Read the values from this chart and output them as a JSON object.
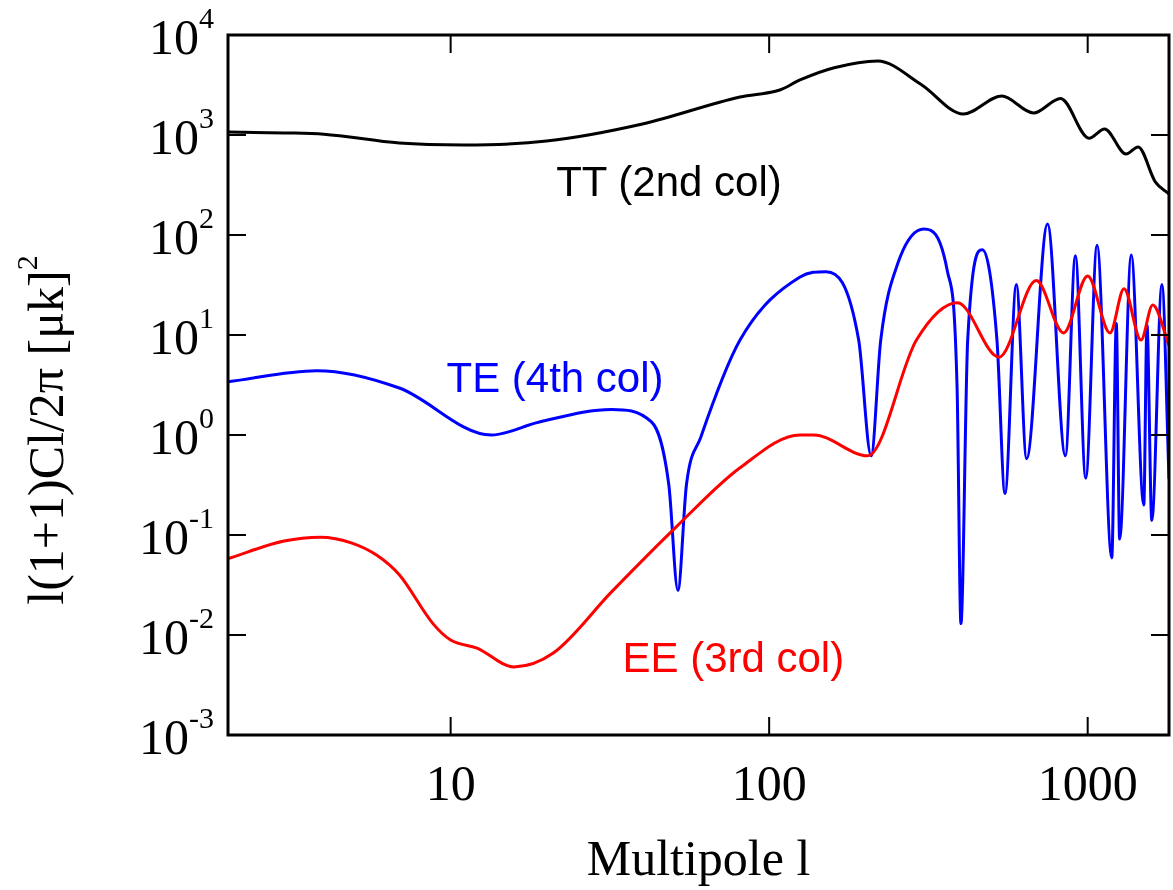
{
  "chart_data": {
    "type": "line",
    "xlabel": "Multipole l",
    "ylabel": "l(1+1)Cl/2π [μk]$^{2}$",
    "log": "xy",
    "marker": "none",
    "line_style": "solid",
    "grid": false,
    "legend": false,
    "xlim": [
      2,
      1800
    ],
    "ylim": [
      0.001,
      10000
    ],
    "xticks": [
      10,
      100,
      1000
    ],
    "yticks": [
      {
        "value": 0.001,
        "label": "10$^{-3}$"
      },
      {
        "value": 0.01,
        "label": "10$^{-2}$"
      },
      {
        "value": 0.1,
        "label": "10$^{-1}$"
      },
      {
        "value": 1,
        "label": "10$^{0}$"
      },
      {
        "value": 10,
        "label": "10$^{1}$"
      },
      {
        "value": 100,
        "label": "10$^{2}$"
      },
      {
        "value": 1000,
        "label": "10$^{3}$"
      },
      {
        "value": 10000,
        "label": "10$^{4}$"
      }
    ],
    "series": [
      {
        "name": "TT (2nd col)",
        "color": "#000000",
        "x": [
          2,
          3,
          4,
          6.9,
          11,
          20,
          40,
          81,
          108,
          125,
          160,
          219,
          300,
          407,
          537,
          676,
          822,
          1010,
          1130,
          1320,
          1440,
          1630,
          1800
        ],
        "values": [
          1070,
          1050,
          1020,
          830,
          794,
          870,
          1290,
          2400,
          2820,
          3550,
          4700,
          5500,
          3200,
          1620,
          2450,
          1660,
          2320,
          930,
          1150,
          645,
          760,
          340,
          257
        ]
      },
      {
        "name": "EE (3rd col)",
        "color": "#ff0000",
        "x": [
          2,
          3,
          3.9,
          4.9,
          5.9,
          6.9,
          8.8,
          10,
          12.1,
          15.8,
          21,
          32,
          51,
          81,
          125,
          138,
          204,
          290,
          390,
          527,
          690,
          840,
          1000,
          1175,
          1300,
          1470,
          1600,
          1800
        ],
        "values": [
          0.058,
          0.087,
          0.095,
          0.083,
          0.062,
          0.04,
          0.013,
          0.0089,
          0.0074,
          0.0048,
          0.0066,
          0.027,
          0.12,
          0.47,
          1.0,
          1.0,
          0.62,
          8.9,
          21,
          6.0,
          35,
          10.5,
          39,
          10.5,
          29,
          8.9,
          20,
          7.9
        ]
      },
      {
        "name": "TE (4th col)",
        "color": "#0000ff",
        "x": [
          2,
          3.8,
          6.9,
          13.4,
          19,
          32,
          42.7,
          48.4,
          51.7,
          55,
          61,
          81,
          125,
          151,
          191,
          209,
          224,
          254,
          306,
          363,
          389,
          400,
          420,
          467,
          519,
          550,
          597,
          643,
          748,
          851,
          915,
          986,
          1070,
          1190,
          1230,
          1260,
          1370,
          1500,
          1535,
          1590,
          1710,
          1800
        ],
        "values": [
          3.4,
          4.4,
          2.95,
          1.0,
          1.35,
          1.8,
          1.35,
          0.32,
          0.028,
          0.32,
          0.95,
          8.9,
          38,
          43,
          8.9,
          0.62,
          8.9,
          53,
          115,
          43,
          3,
          0.013,
          8.9,
          71,
          8.9,
          0.26,
          32,
          0.58,
          129,
          0.62,
          62,
          0.37,
          79,
          0.059,
          13,
          0.091,
          63,
          0.2,
          12.6,
          0.14,
          32,
          0.37
        ]
      }
    ]
  }
}
